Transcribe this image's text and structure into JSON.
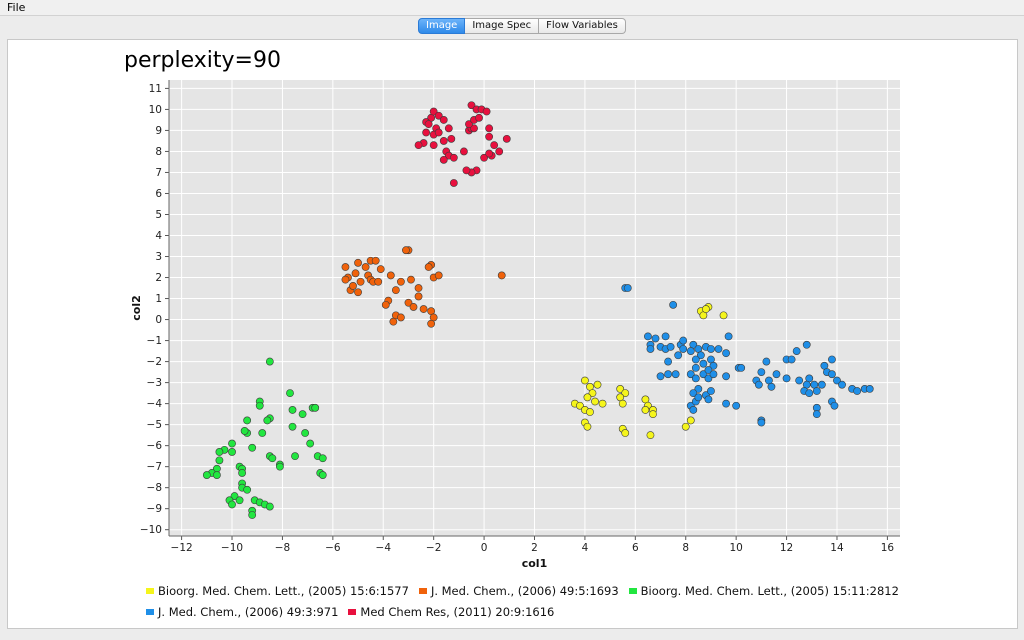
{
  "menu": {
    "file_label": "File"
  },
  "tabs": [
    {
      "label": "Image",
      "active": true
    },
    {
      "label": "Image Spec",
      "active": false
    },
    {
      "label": "Flow Variables",
      "active": false
    }
  ],
  "chart_data": {
    "type": "scatter",
    "title": "perplexity=90",
    "xlabel": "col1",
    "ylabel": "col2",
    "xlim": [
      -12.5,
      16.5
    ],
    "ylim": [
      -10.3,
      11.4
    ],
    "xticks": [
      -12,
      -10,
      -8,
      -6,
      -4,
      -2,
      0,
      2,
      4,
      6,
      8,
      10,
      12,
      14,
      16
    ],
    "yticks": [
      -10,
      -9,
      -8,
      -7,
      -6,
      -5,
      -4,
      -3,
      -2,
      -1,
      0,
      1,
      2,
      3,
      4,
      5,
      6,
      7,
      8,
      9,
      10,
      11
    ],
    "grid": true,
    "legend_position": "bottom",
    "series": [
      {
        "name": "Bioorg. Med. Chem. Lett., (2005) 15:6:1577",
        "color": "#f5f51c",
        "points": [
          [
            4.0,
            -2.9
          ],
          [
            4.2,
            -3.2
          ],
          [
            4.5,
            -3.1
          ],
          [
            4.3,
            -3.5
          ],
          [
            4.1,
            -3.7
          ],
          [
            3.6,
            -4.0
          ],
          [
            3.8,
            -4.1
          ],
          [
            4.0,
            -4.3
          ],
          [
            4.4,
            -3.9
          ],
          [
            4.7,
            -4.0
          ],
          [
            4.2,
            -4.4
          ],
          [
            4.0,
            -4.9
          ],
          [
            4.1,
            -5.1
          ],
          [
            5.4,
            -3.3
          ],
          [
            5.6,
            -3.5
          ],
          [
            5.4,
            -3.7
          ],
          [
            5.5,
            -4.0
          ],
          [
            5.5,
            -5.2
          ],
          [
            5.6,
            -5.4
          ],
          [
            6.4,
            -3.8
          ],
          [
            6.5,
            -4.1
          ],
          [
            6.7,
            -4.3
          ],
          [
            6.7,
            -4.5
          ],
          [
            6.4,
            -4.3
          ],
          [
            6.6,
            -5.5
          ],
          [
            8.0,
            -5.1
          ],
          [
            8.2,
            -4.8
          ],
          [
            8.6,
            0.4
          ],
          [
            8.9,
            0.6
          ],
          [
            8.7,
            0.2
          ],
          [
            9.5,
            0.2
          ],
          [
            8.8,
            0.5
          ]
        ]
      },
      {
        "name": "J. Med. Chem., (2006) 49:5:1693",
        "color": "#f0620b",
        "points": [
          [
            -5.5,
            2.5
          ],
          [
            -5.4,
            2.0
          ],
          [
            -5.5,
            1.9
          ],
          [
            -5.0,
            2.7
          ],
          [
            -5.1,
            2.2
          ],
          [
            -4.7,
            2.5
          ],
          [
            -4.6,
            2.1
          ],
          [
            -4.9,
            1.8
          ],
          [
            -4.5,
            2.8
          ],
          [
            -4.3,
            2.8
          ],
          [
            -4.5,
            1.9
          ],
          [
            -4.1,
            2.4
          ],
          [
            -5.3,
            1.4
          ],
          [
            -5.2,
            1.6
          ],
          [
            -5.0,
            1.3
          ],
          [
            -4.4,
            1.8
          ],
          [
            -4.2,
            1.8
          ],
          [
            -3.7,
            2.1
          ],
          [
            -3.0,
            3.3
          ],
          [
            -3.1,
            3.3
          ],
          [
            -3.3,
            1.8
          ],
          [
            -2.9,
            1.9
          ],
          [
            -3.5,
            1.4
          ],
          [
            -3.8,
            0.9
          ],
          [
            -3.9,
            0.7
          ],
          [
            -3.5,
            0.2
          ],
          [
            -3.0,
            0.8
          ],
          [
            -2.8,
            0.6
          ],
          [
            -2.6,
            1.1
          ],
          [
            -2.6,
            1.5
          ],
          [
            -2.4,
            0.5
          ],
          [
            -2.1,
            0.4
          ],
          [
            -2.0,
            0.1
          ],
          [
            -2.1,
            -0.2
          ],
          [
            -3.3,
            0.1
          ],
          [
            -3.6,
            -0.1
          ],
          [
            -2.1,
            2.6
          ],
          [
            -2.2,
            2.5
          ],
          [
            -2.0,
            2.0
          ],
          [
            -1.8,
            2.1
          ],
          [
            0.7,
            2.1
          ]
        ]
      },
      {
        "name": "Bioorg. Med. Chem. Lett., (2005) 15:11:2812",
        "color": "#22e640",
        "points": [
          [
            -8.5,
            -2.0
          ],
          [
            -7.7,
            -3.5
          ],
          [
            -8.9,
            -3.9
          ],
          [
            -8.9,
            -4.1
          ],
          [
            -8.5,
            -4.7
          ],
          [
            -8.6,
            -4.8
          ],
          [
            -9.4,
            -4.8
          ],
          [
            -9.4,
            -5.4
          ],
          [
            -9.5,
            -5.3
          ],
          [
            -8.8,
            -5.4
          ],
          [
            -7.6,
            -4.3
          ],
          [
            -7.2,
            -4.5
          ],
          [
            -6.8,
            -4.2
          ],
          [
            -6.7,
            -4.2
          ],
          [
            -7.6,
            -5.1
          ],
          [
            -7.1,
            -5.4
          ],
          [
            -6.9,
            -5.9
          ],
          [
            -6.6,
            -6.5
          ],
          [
            -6.4,
            -6.6
          ],
          [
            -6.5,
            -7.3
          ],
          [
            -6.4,
            -7.4
          ],
          [
            -10.0,
            -5.9
          ],
          [
            -10.3,
            -6.2
          ],
          [
            -10.0,
            -6.3
          ],
          [
            -10.5,
            -6.3
          ],
          [
            -10.5,
            -6.7
          ],
          [
            -10.6,
            -7.1
          ],
          [
            -10.8,
            -7.3
          ],
          [
            -10.6,
            -7.4
          ],
          [
            -11.0,
            -7.4
          ],
          [
            -9.7,
            -7.0
          ],
          [
            -9.6,
            -7.1
          ],
          [
            -9.6,
            -7.3
          ],
          [
            -9.2,
            -6.1
          ],
          [
            -8.5,
            -6.5
          ],
          [
            -8.4,
            -6.6
          ],
          [
            -8.1,
            -6.9
          ],
          [
            -8.1,
            -7.0
          ],
          [
            -7.5,
            -6.5
          ],
          [
            -9.6,
            -7.8
          ],
          [
            -9.6,
            -8.0
          ],
          [
            -9.4,
            -8.1
          ],
          [
            -9.9,
            -8.4
          ],
          [
            -10.1,
            -8.6
          ],
          [
            -10.0,
            -8.8
          ],
          [
            -9.7,
            -8.6
          ],
          [
            -9.1,
            -8.6
          ],
          [
            -8.9,
            -8.7
          ],
          [
            -8.7,
            -8.8
          ],
          [
            -8.5,
            -8.9
          ],
          [
            -9.2,
            -9.1
          ],
          [
            -9.2,
            -9.3
          ]
        ]
      },
      {
        "name": "J. Med. Chem., (2006) 49:3:971",
        "color": "#1f8fe8",
        "points": [
          [
            5.6,
            1.5
          ],
          [
            5.7,
            1.5
          ],
          [
            7.5,
            0.7
          ],
          [
            6.5,
            -0.8
          ],
          [
            6.8,
            -0.9
          ],
          [
            7.2,
            -0.8
          ],
          [
            6.6,
            -1.2
          ],
          [
            6.6,
            -1.4
          ],
          [
            7.0,
            -1.3
          ],
          [
            7.2,
            -1.4
          ],
          [
            7.4,
            -1.3
          ],
          [
            7.8,
            -1.2
          ],
          [
            7.9,
            -1.0
          ],
          [
            7.9,
            -1.4
          ],
          [
            8.3,
            -1.2
          ],
          [
            8.2,
            -1.5
          ],
          [
            8.5,
            -1.4
          ],
          [
            8.8,
            -1.3
          ],
          [
            9.0,
            -1.4
          ],
          [
            9.3,
            -1.4
          ],
          [
            8.6,
            -1.7
          ],
          [
            8.4,
            -1.9
          ],
          [
            8.7,
            -2.1
          ],
          [
            9.0,
            -1.9
          ],
          [
            9.1,
            -2.2
          ],
          [
            9.7,
            -0.8
          ],
          [
            9.6,
            -1.6
          ],
          [
            8.4,
            -2.3
          ],
          [
            8.7,
            -2.6
          ],
          [
            8.9,
            -2.4
          ],
          [
            8.2,
            -2.6
          ],
          [
            7.7,
            -1.7
          ],
          [
            7.3,
            -2.0
          ],
          [
            7.6,
            -2.6
          ],
          [
            7.0,
            -2.7
          ],
          [
            7.3,
            -2.6
          ],
          [
            8.4,
            -2.8
          ],
          [
            8.9,
            -2.8
          ],
          [
            9.1,
            -2.6
          ],
          [
            9.6,
            -2.7
          ],
          [
            10.1,
            -2.3
          ],
          [
            10.2,
            -2.3
          ],
          [
            11.0,
            -2.5
          ],
          [
            10.8,
            -2.9
          ],
          [
            10.9,
            -3.1
          ],
          [
            11.3,
            -2.9
          ],
          [
            11.4,
            -3.2
          ],
          [
            11.6,
            -2.6
          ],
          [
            12.0,
            -1.9
          ],
          [
            12.2,
            -1.9
          ],
          [
            12.4,
            -1.5
          ],
          [
            12.8,
            -1.2
          ],
          [
            11.2,
            -2.0
          ],
          [
            12.0,
            -2.8
          ],
          [
            12.5,
            -2.9
          ],
          [
            12.9,
            -2.8
          ],
          [
            12.8,
            -3.1
          ],
          [
            12.7,
            -3.4
          ],
          [
            12.9,
            -3.5
          ],
          [
            13.1,
            -3.1
          ],
          [
            13.4,
            -3.1
          ],
          [
            13.2,
            -3.4
          ],
          [
            13.5,
            -2.2
          ],
          [
            13.8,
            -1.9
          ],
          [
            13.6,
            -2.5
          ],
          [
            13.8,
            -2.6
          ],
          [
            14.0,
            -2.9
          ],
          [
            14.2,
            -3.1
          ],
          [
            14.6,
            -3.3
          ],
          [
            14.8,
            -3.4
          ],
          [
            15.1,
            -3.3
          ],
          [
            15.3,
            -3.3
          ],
          [
            13.8,
            -3.9
          ],
          [
            13.9,
            -4.1
          ],
          [
            13.2,
            -4.2
          ],
          [
            13.2,
            -4.5
          ],
          [
            8.2,
            -4.1
          ],
          [
            8.4,
            -3.9
          ],
          [
            8.5,
            -3.3
          ],
          [
            8.3,
            -3.5
          ],
          [
            8.8,
            -3.6
          ],
          [
            9.0,
            -3.4
          ],
          [
            8.9,
            -3.8
          ],
          [
            9.6,
            -4.0
          ],
          [
            10.0,
            -4.1
          ],
          [
            11.0,
            -4.8
          ],
          [
            11.0,
            -4.9
          ],
          [
            8.5,
            -3.7
          ],
          [
            8.3,
            -4.3
          ]
        ]
      },
      {
        "name": "Med Chem Res, (2011) 20:9:1616",
        "color": "#e8103e",
        "points": [
          [
            -2.1,
            9.6
          ],
          [
            -2.0,
            9.9
          ],
          [
            -1.8,
            9.7
          ],
          [
            -1.6,
            9.5
          ],
          [
            -2.3,
            9.4
          ],
          [
            -2.2,
            9.3
          ],
          [
            -1.9,
            9.1
          ],
          [
            -2.3,
            8.9
          ],
          [
            -2.0,
            8.8
          ],
          [
            -1.8,
            8.9
          ],
          [
            -1.4,
            9.1
          ],
          [
            -2.4,
            8.4
          ],
          [
            -2.6,
            8.3
          ],
          [
            -2.0,
            8.3
          ],
          [
            -1.6,
            8.5
          ],
          [
            -1.3,
            8.6
          ],
          [
            -1.5,
            8.0
          ],
          [
            -1.4,
            7.8
          ],
          [
            -1.6,
            7.6
          ],
          [
            -1.2,
            7.7
          ],
          [
            -0.8,
            8.0
          ],
          [
            -0.6,
            9.0
          ],
          [
            -0.5,
            9.1
          ],
          [
            -0.4,
            9.1
          ],
          [
            -0.6,
            9.3
          ],
          [
            -0.5,
            10.2
          ],
          [
            -0.3,
            10.0
          ],
          [
            -0.1,
            10.0
          ],
          [
            0.1,
            9.9
          ],
          [
            -0.4,
            9.5
          ],
          [
            -0.2,
            9.6
          ],
          [
            0.2,
            9.1
          ],
          [
            0.2,
            8.7
          ],
          [
            0.4,
            8.3
          ],
          [
            0.9,
            8.6
          ],
          [
            0.6,
            8.0
          ],
          [
            0.3,
            7.8
          ],
          [
            0.0,
            7.7
          ],
          [
            0.2,
            7.9
          ],
          [
            -0.3,
            7.1
          ],
          [
            -0.5,
            7.0
          ],
          [
            -0.7,
            7.1
          ],
          [
            -1.2,
            6.5
          ]
        ]
      }
    ]
  }
}
